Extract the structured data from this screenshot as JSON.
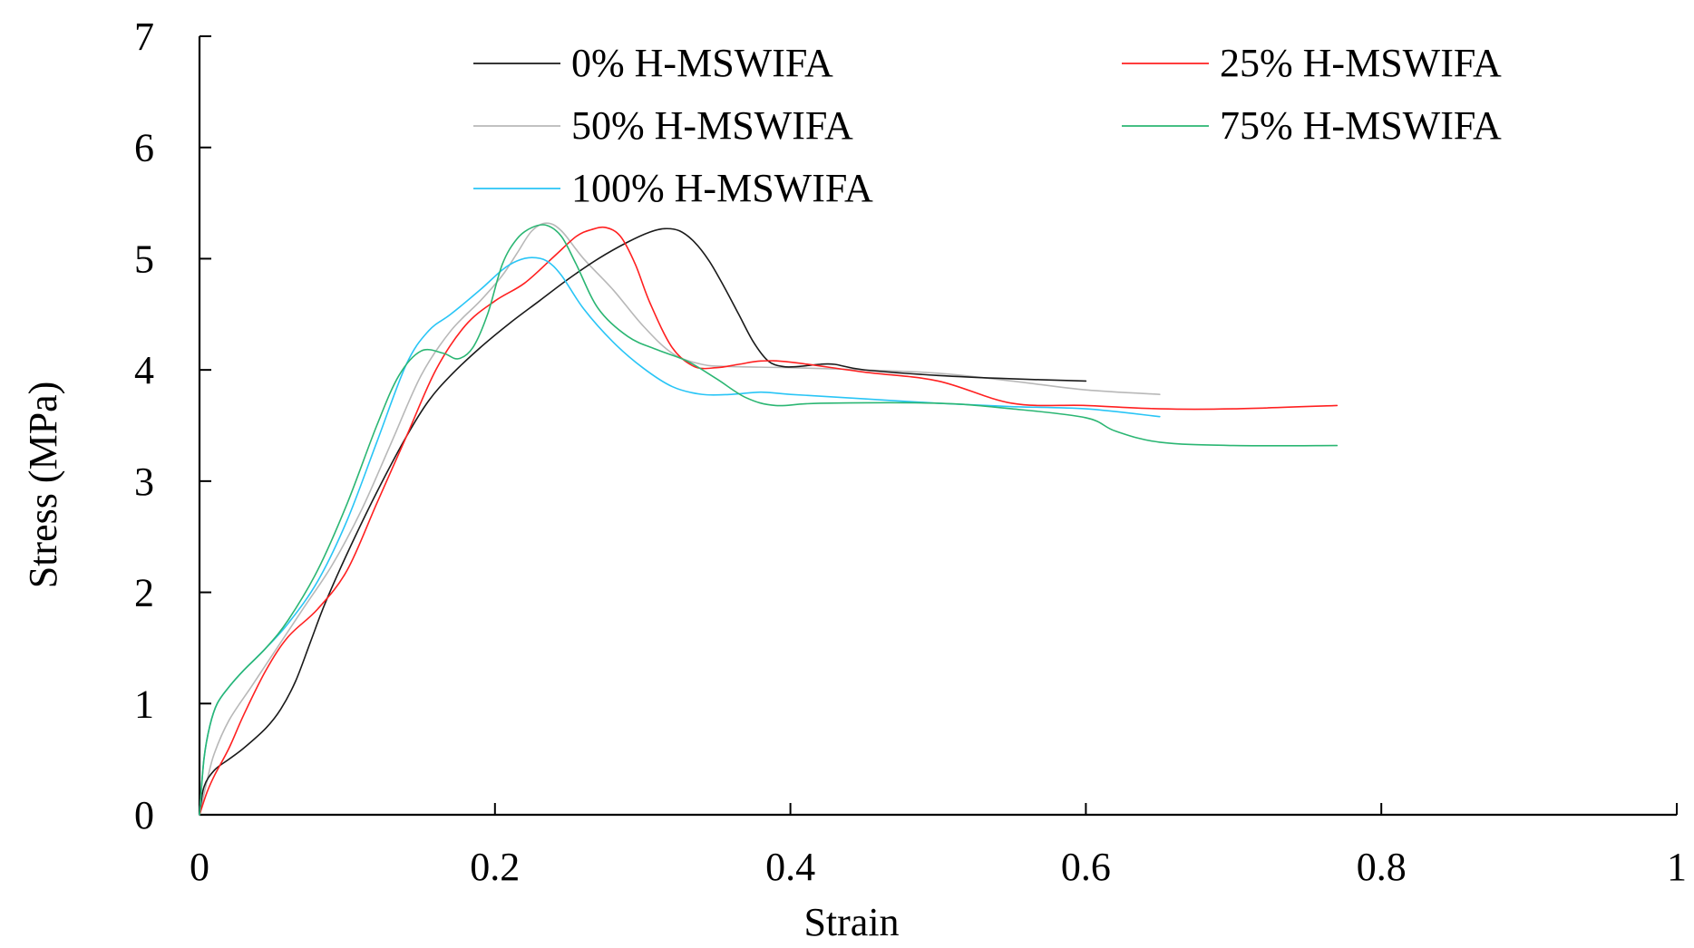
{
  "chart_data": {
    "type": "line",
    "title": "",
    "xlabel": "Strain",
    "ylabel": "Stress (MPa)",
    "xlim": [
      0,
      1
    ],
    "ylim": [
      0,
      7
    ],
    "xticks": [
      0,
      0.2,
      0.4,
      0.6,
      0.8,
      1
    ],
    "yticks": [
      0,
      1,
      2,
      3,
      4,
      5,
      6,
      7
    ],
    "xtick_labels": [
      "0",
      "0.2",
      "0.4",
      "0.6",
      "0.8",
      "1"
    ],
    "ytick_labels": [
      "0",
      "1",
      "2",
      "3",
      "4",
      "5",
      "6",
      "7"
    ],
    "grid": false,
    "legend_position": "top",
    "series": [
      {
        "name": "0% H-MSWIFA",
        "color": "#1a1a1a",
        "x": [
          0,
          0.003,
          0.01,
          0.02,
          0.03,
          0.045,
          0.055,
          0.065,
          0.075,
          0.085,
          0.1,
          0.12,
          0.14,
          0.155,
          0.17,
          0.19,
          0.21,
          0.23,
          0.25,
          0.27,
          0.29,
          0.305,
          0.315,
          0.325,
          0.335,
          0.345,
          0.355,
          0.365,
          0.375,
          0.385,
          0.395,
          0.405,
          0.42,
          0.43,
          0.45,
          0.5,
          0.55,
          0.6
        ],
        "y": [
          0,
          0.25,
          0.4,
          0.5,
          0.6,
          0.78,
          0.95,
          1.2,
          1.55,
          1.9,
          2.35,
          2.9,
          3.4,
          3.72,
          3.95,
          4.2,
          4.42,
          4.62,
          4.82,
          5.0,
          5.15,
          5.24,
          5.27,
          5.25,
          5.15,
          4.98,
          4.75,
          4.5,
          4.25,
          4.08,
          4.03,
          4.03,
          4.05,
          4.05,
          4.0,
          3.95,
          3.92,
          3.9
        ]
      },
      {
        "name": "25% H-MSWIFA",
        "color": "#ff2020",
        "x": [
          0,
          0.005,
          0.01,
          0.02,
          0.03,
          0.045,
          0.06,
          0.08,
          0.1,
          0.12,
          0.14,
          0.16,
          0.18,
          0.2,
          0.22,
          0.24,
          0.255,
          0.265,
          0.275,
          0.285,
          0.295,
          0.305,
          0.32,
          0.335,
          0.35,
          0.365,
          0.38,
          0.4,
          0.45,
          0.5,
          0.55,
          0.6,
          0.65,
          0.7,
          0.77
        ],
        "y": [
          0,
          0.2,
          0.35,
          0.6,
          0.9,
          1.3,
          1.6,
          1.85,
          2.2,
          2.8,
          3.4,
          4.0,
          4.4,
          4.62,
          4.78,
          5.02,
          5.2,
          5.26,
          5.28,
          5.2,
          4.95,
          4.6,
          4.2,
          4.03,
          4.02,
          4.05,
          4.08,
          4.07,
          3.98,
          3.9,
          3.7,
          3.68,
          3.65,
          3.65,
          3.68
        ]
      },
      {
        "name": "50% H-MSWIFA",
        "color": "#b8b8b8",
        "x": [
          0,
          0.005,
          0.01,
          0.02,
          0.035,
          0.05,
          0.07,
          0.09,
          0.11,
          0.13,
          0.15,
          0.17,
          0.19,
          0.205,
          0.215,
          0.225,
          0.235,
          0.245,
          0.26,
          0.28,
          0.3,
          0.32,
          0.34,
          0.36,
          0.4,
          0.45,
          0.5,
          0.55,
          0.6,
          0.65
        ],
        "y": [
          0,
          0.3,
          0.55,
          0.85,
          1.15,
          1.45,
          1.85,
          2.25,
          2.75,
          3.35,
          3.95,
          4.35,
          4.62,
          4.85,
          5.05,
          5.25,
          5.32,
          5.25,
          5.0,
          4.72,
          4.4,
          4.15,
          4.05,
          4.03,
          4.02,
          4.0,
          3.97,
          3.9,
          3.82,
          3.78
        ]
      },
      {
        "name": "75% H-MSWIFA",
        "color": "#2bb673",
        "x": [
          0,
          0.003,
          0.007,
          0.012,
          0.02,
          0.03,
          0.045,
          0.06,
          0.08,
          0.1,
          0.12,
          0.135,
          0.15,
          0.165,
          0.175,
          0.185,
          0.195,
          0.205,
          0.215,
          0.225,
          0.235,
          0.245,
          0.255,
          0.27,
          0.29,
          0.31,
          0.33,
          0.35,
          0.37,
          0.39,
          0.42,
          0.5,
          0.55,
          0.6,
          0.62,
          0.65,
          0.7,
          0.77
        ],
        "y": [
          0,
          0.5,
          0.8,
          1.0,
          1.15,
          1.3,
          1.5,
          1.75,
          2.2,
          2.8,
          3.5,
          3.95,
          4.17,
          4.15,
          4.1,
          4.2,
          4.5,
          4.95,
          5.18,
          5.28,
          5.3,
          5.2,
          4.95,
          4.55,
          4.3,
          4.18,
          4.08,
          3.92,
          3.75,
          3.68,
          3.7,
          3.7,
          3.65,
          3.57,
          3.45,
          3.35,
          3.32,
          3.32
        ]
      },
      {
        "name": "100% H-MSWIFA",
        "color": "#29c5f6",
        "x": [
          0,
          0.003,
          0.007,
          0.012,
          0.02,
          0.03,
          0.045,
          0.06,
          0.08,
          0.1,
          0.12,
          0.14,
          0.155,
          0.17,
          0.19,
          0.205,
          0.215,
          0.225,
          0.235,
          0.245,
          0.26,
          0.28,
          0.3,
          0.32,
          0.34,
          0.36,
          0.38,
          0.4,
          0.45,
          0.5,
          0.55,
          0.6,
          0.65
        ],
        "y": [
          0,
          0.5,
          0.8,
          1.0,
          1.15,
          1.3,
          1.5,
          1.72,
          2.1,
          2.65,
          3.35,
          4.05,
          4.35,
          4.5,
          4.72,
          4.9,
          4.98,
          5.01,
          4.98,
          4.85,
          4.55,
          4.25,
          4.02,
          3.85,
          3.78,
          3.78,
          3.8,
          3.78,
          3.74,
          3.7,
          3.67,
          3.65,
          3.58
        ]
      }
    ]
  }
}
